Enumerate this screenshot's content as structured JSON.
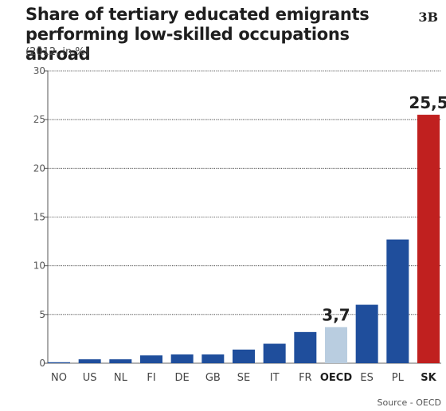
{
  "header": {
    "title_line1": "Share of tertiary educated emigrants",
    "title_line2": "performing low-skilled occupations abroad",
    "subtitle": "(2012, in %)",
    "figure_label": "3B"
  },
  "source": "Source - OECD",
  "colors": {
    "default_bar": "#1f4e9c",
    "oecd_bar": "#b9cde0",
    "highlight_bar": "#c0201f",
    "grid": "#333333"
  },
  "chart_data": {
    "type": "bar",
    "title": "Share of tertiary educated emigrants performing low-skilled occupations abroad",
    "subtitle": "(2012, in %)",
    "categories": [
      "NO",
      "US",
      "NL",
      "FI",
      "DE",
      "GB",
      "SE",
      "IT",
      "FR",
      "OECD",
      "ES",
      "PL",
      "SK"
    ],
    "values": [
      0.1,
      0.4,
      0.4,
      0.8,
      0.9,
      0.9,
      1.4,
      2.0,
      3.2,
      3.7,
      6.0,
      12.7,
      25.5
    ],
    "bold_categories": [
      "OECD",
      "SK"
    ],
    "data_labels": [
      {
        "category": "OECD",
        "text": "3,7"
      },
      {
        "category": "SK",
        "text": "25,5"
      }
    ],
    "ylim": [
      0,
      30
    ],
    "yticks": [
      0,
      5,
      10,
      15,
      20,
      25,
      30
    ],
    "grid": true,
    "xlabel": "",
    "ylabel": ""
  }
}
